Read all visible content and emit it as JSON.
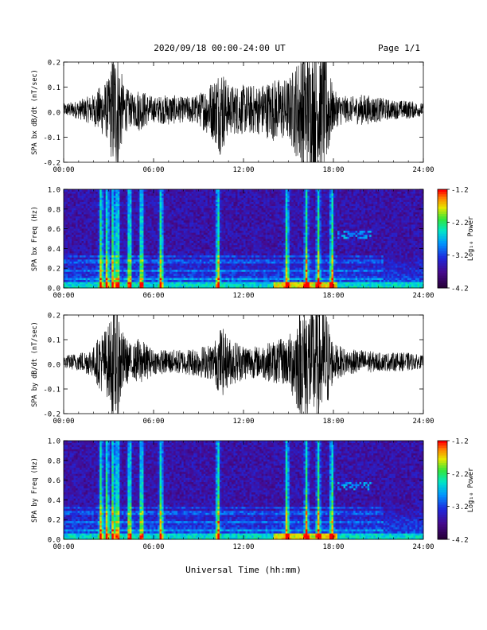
{
  "header": {
    "title": "2020/09/18  00:00-24:00 UT",
    "page": "Page 1/1"
  },
  "chart_data": [
    {
      "type": "line",
      "ylabel": "SPA bx dB/dt (nT/sec)",
      "xlabel": "",
      "xlim": [
        0,
        24
      ],
      "ylim": [
        -0.2,
        0.2
      ],
      "x_ticks": [
        "00:00",
        "06:00",
        "12:00",
        "18:00",
        "24:00"
      ],
      "y_ticks": [
        "-0.2",
        "-0.1",
        "0.0",
        "0.1",
        "0.2"
      ],
      "series": [
        {
          "values_note": "",
          "x": [
            0,
            1,
            2,
            2.5,
            3,
            3.3,
            3.6,
            4,
            4.6,
            5,
            6,
            7,
            8,
            9,
            10,
            10.5,
            11,
            12,
            13,
            14,
            15,
            15.5,
            16,
            16.5,
            17,
            17.5,
            18,
            19,
            20,
            21,
            22,
            23,
            24
          ],
          "amplitude": [
            0.02,
            0.03,
            0.05,
            0.08,
            0.1,
            0.2,
            0.2,
            0.08,
            0.05,
            0.07,
            0.04,
            0.05,
            0.04,
            0.05,
            0.1,
            0.15,
            0.08,
            0.08,
            0.08,
            0.1,
            0.1,
            0.15,
            0.2,
            0.2,
            0.2,
            0.2,
            0.06,
            0.04,
            0.05,
            0.04,
            0.03,
            0.03,
            0.02
          ]
        }
      ]
    },
    {
      "type": "heatmap",
      "ylabel": "SPA bx Freq (Hz)",
      "xlim": [
        0,
        24
      ],
      "ylim": [
        0,
        1.0
      ],
      "x_ticks": [
        "00:00",
        "06:00",
        "12:00",
        "18:00",
        "24:00"
      ],
      "y_ticks": [
        "0.0",
        "0.2",
        "0.4",
        "0.6",
        "0.8",
        "1.0"
      ],
      "colorbar": {
        "label": "Log₁₀ Power",
        "range": [
          -4.2,
          -1.2
        ],
        "ticks": [
          "-1.2",
          "-2.2",
          "-3.2",
          "-4.2"
        ]
      },
      "bands_hz": [
        0.09,
        0.18,
        0.27,
        0.32
      ],
      "active_times": [
        2.5,
        2.9,
        3.3,
        3.6,
        4.4,
        5.2,
        6.5,
        10.3,
        14.9,
        16.2,
        17.0,
        17.9
      ]
    },
    {
      "type": "line",
      "ylabel": "SPA by dB/dt (nT/sec)",
      "xlim": [
        0,
        24
      ],
      "ylim": [
        -0.2,
        0.2
      ],
      "x_ticks": [
        "00:00",
        "06:00",
        "12:00",
        "18:00",
        "24:00"
      ],
      "y_ticks": [
        "-0.2",
        "-0.1",
        "0.0",
        "0.1",
        "0.2"
      ],
      "series": [
        {
          "x": [
            0,
            1,
            2,
            2.5,
            3,
            3.3,
            3.6,
            4,
            4.6,
            5,
            6,
            7,
            8,
            9,
            10,
            10.5,
            11,
            12,
            13,
            14,
            15,
            15.5,
            16,
            16.5,
            17,
            17.5,
            18,
            19,
            20,
            21,
            22,
            23,
            24
          ],
          "amplitude": [
            0.02,
            0.03,
            0.05,
            0.1,
            0.12,
            0.2,
            0.2,
            0.09,
            0.05,
            0.08,
            0.04,
            0.04,
            0.04,
            0.05,
            0.06,
            0.12,
            0.08,
            0.06,
            0.05,
            0.07,
            0.08,
            0.15,
            0.2,
            0.2,
            0.2,
            0.18,
            0.06,
            0.04,
            0.04,
            0.03,
            0.03,
            0.03,
            0.02
          ]
        }
      ]
    },
    {
      "type": "heatmap",
      "ylabel": "SPA by Freq (Hz)",
      "xlim": [
        0,
        24
      ],
      "ylim": [
        0,
        1.0
      ],
      "x_ticks": [
        "00:00",
        "06:00",
        "12:00",
        "18:00",
        "24:00"
      ],
      "y_ticks": [
        "0.0",
        "0.2",
        "0.4",
        "0.6",
        "0.8",
        "1.0"
      ],
      "colorbar": {
        "label": "Log₁₀ Power",
        "range": [
          -4.2,
          -1.2
        ],
        "ticks": [
          "-1.2",
          "-2.2",
          "-3.2",
          "-4.2"
        ]
      },
      "bands_hz": [
        0.09,
        0.18,
        0.27,
        0.32
      ],
      "active_times": [
        2.5,
        2.9,
        3.3,
        3.6,
        4.4,
        5.2,
        6.5,
        10.3,
        14.9,
        16.2,
        17.0,
        17.9
      ]
    }
  ],
  "footer": {
    "xlabel": "Universal Time (hh:mm)"
  },
  "colors": {
    "trace": "#000000",
    "spec_low": "#2a0f6e",
    "spec_high": "#ff0000"
  }
}
